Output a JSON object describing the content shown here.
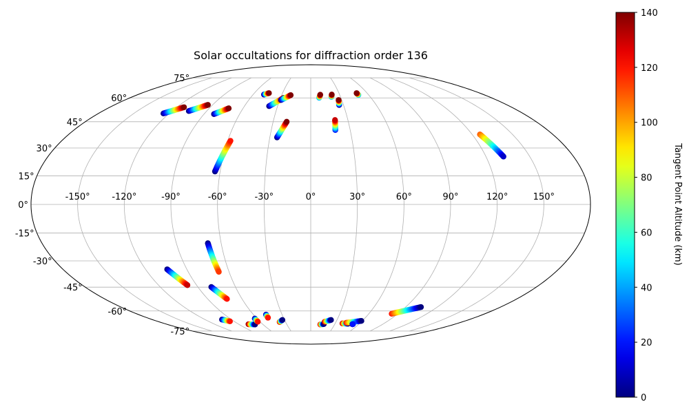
{
  "chart_data": {
    "type": "scatter",
    "projection": "mollweide",
    "title": "Solar occultations for diffraction order 136",
    "lon_ticks": [
      -150,
      -120,
      -90,
      -60,
      -30,
      0,
      30,
      60,
      90,
      120,
      150
    ],
    "lon_tick_labels": [
      "-150°",
      "-120°",
      "-90°",
      "-60°",
      "-30°",
      "0°",
      "30°",
      "60°",
      "90°",
      "120°",
      "150°"
    ],
    "lat_ticks": [
      75,
      60,
      45,
      30,
      15,
      0,
      -15,
      -30,
      -45,
      -60,
      -75
    ],
    "lat_tick_labels": [
      "75°",
      "60°",
      "45°",
      "30°",
      "15°",
      "0°",
      "-15°",
      "-30°",
      "-45°",
      "-60°",
      "-75°"
    ],
    "grid": true,
    "colorbar": {
      "label": "Tangent Point Altitude (km)",
      "min": 0,
      "max": 140,
      "ticks": [
        0,
        20,
        40,
        60,
        80,
        100,
        120,
        140
      ],
      "tick_labels": [
        "0",
        "20",
        "40",
        "60",
        "80",
        "100",
        "120",
        "140"
      ],
      "colormap": "jet"
    },
    "tracks": [
      {
        "lon0": -124.9,
        "lat0": 50.0,
        "lon1": -113.5,
        "lat1": 53.9,
        "alt0": 0,
        "alt1": 140
      },
      {
        "lon0": -105.5,
        "lat0": 51.5,
        "lon1": -94.3,
        "lat1": 55.4,
        "alt0": 0,
        "alt1": 140
      },
      {
        "lon0": -81.6,
        "lat0": 49.6,
        "lon1": -72.7,
        "lat1": 53.2,
        "alt0": 0,
        "alt1": 140
      },
      {
        "lon0": -63.4,
        "lat0": 17.3,
        "lon1": -58.0,
        "lat1": 34.0,
        "alt0": 0,
        "alt1": 120
      },
      {
        "lon0": -48.7,
        "lat0": 62.3,
        "lon1": -44.5,
        "lat1": 63.3,
        "alt0": 0,
        "alt1": 140
      },
      {
        "lon0": -37.7,
        "lat0": 54.6,
        "lon1": -27.0,
        "lat1": 60.0,
        "alt0": 0,
        "alt1": 140
      },
      {
        "lon0": -28.8,
        "lat0": 58.6,
        "lon1": -20.7,
        "lat1": 61.9,
        "alt0": 0,
        "alt1": 140
      },
      {
        "lon0": -24.7,
        "lat0": 35.9,
        "lon1": -19.2,
        "lat1": 45.0,
        "alt0": 0,
        "alt1": 140
      },
      {
        "lon0": 8.4,
        "lat0": 60.1,
        "lon1": 9.9,
        "lat1": 62.2,
        "alt0": 40,
        "alt1": 140
      },
      {
        "lon0": 20.8,
        "lat0": 60.7,
        "lon1": 21.9,
        "lat1": 62.3,
        "alt0": 40,
        "alt1": 140
      },
      {
        "lon0": 26.0,
        "lat0": 55.3,
        "lon1": 27.0,
        "lat1": 58.6,
        "alt0": 0,
        "alt1": 140
      },
      {
        "lon0": 18.7,
        "lat0": 40.1,
        "lon1": 19.6,
        "lat1": 46.0,
        "alt0": 20,
        "alt1": 130
      },
      {
        "lon0": 49.3,
        "lat0": 62.0,
        "lon1": 48.8,
        "lat1": 63.3,
        "alt0": 40,
        "alt1": 140
      },
      {
        "lon0": 125.8,
        "lat0": 37.6,
        "lon1": 132.0,
        "lat1": 25.3,
        "alt0": 110,
        "alt1": 10
      },
      {
        "lon0": -68.9,
        "lat0": -20.4,
        "lon1": -67.5,
        "lat1": -36.1,
        "alt0": 0,
        "alt1": 115
      },
      {
        "lon0": -104.3,
        "lat0": -34.7,
        "lon1": -97.2,
        "lat1": -43.8,
        "alt0": 0,
        "alt1": 130
      },
      {
        "lon0": -79.3,
        "lat0": -44.9,
        "lon1": -73.2,
        "lat1": -52.2,
        "alt0": 0,
        "alt1": 120
      },
      {
        "lon0": -100.7,
        "lat0": -66.0,
        "lon1": -94.8,
        "lat1": -67.3,
        "alt0": 0,
        "alt1": 120
      },
      {
        "lon0": -77.8,
        "lat0": -69.5,
        "lon1": -70.0,
        "lat1": -69.7,
        "alt0": 140,
        "alt1": 0
      },
      {
        "lon0": -62.4,
        "lat0": -65.3,
        "lon1": -62.6,
        "lat1": -67.6,
        "alt0": 0,
        "alt1": 120
      },
      {
        "lon0": -46.8,
        "lat0": -62.5,
        "lon1": -47.0,
        "lat1": -64.7,
        "alt0": 0,
        "alt1": 120
      },
      {
        "lon0": -37.0,
        "lat0": -67.8,
        "lon1": -32.4,
        "lat1": -66.3,
        "alt0": 130,
        "alt1": 0
      },
      {
        "lon0": 12.0,
        "lat0": -69.7,
        "lon1": 16.3,
        "lat1": -69.4,
        "alt0": 130,
        "alt1": 0
      },
      {
        "lon0": 16.5,
        "lat0": -67.7,
        "lon1": 23.2,
        "lat1": -66.3,
        "alt0": 130,
        "alt1": 0
      },
      {
        "lon0": 38.9,
        "lat0": -68.9,
        "lon1": 46.1,
        "lat1": -69.1,
        "alt0": 130,
        "alt1": 0
      },
      {
        "lon0": 43.0,
        "lat0": -68.4,
        "lon1": 59.0,
        "lat1": -67.0,
        "alt0": 120,
        "alt1": 0
      },
      {
        "lon0": 52.1,
        "lat0": -69.5,
        "lon1": 52.6,
        "lat1": -69.4,
        "alt0": 0,
        "alt1": 20
      },
      {
        "lon0": 83.6,
        "lat0": -61.9,
        "lon1": 104.5,
        "lat1": -57.4,
        "alt0": 120,
        "alt1": 0
      }
    ]
  }
}
